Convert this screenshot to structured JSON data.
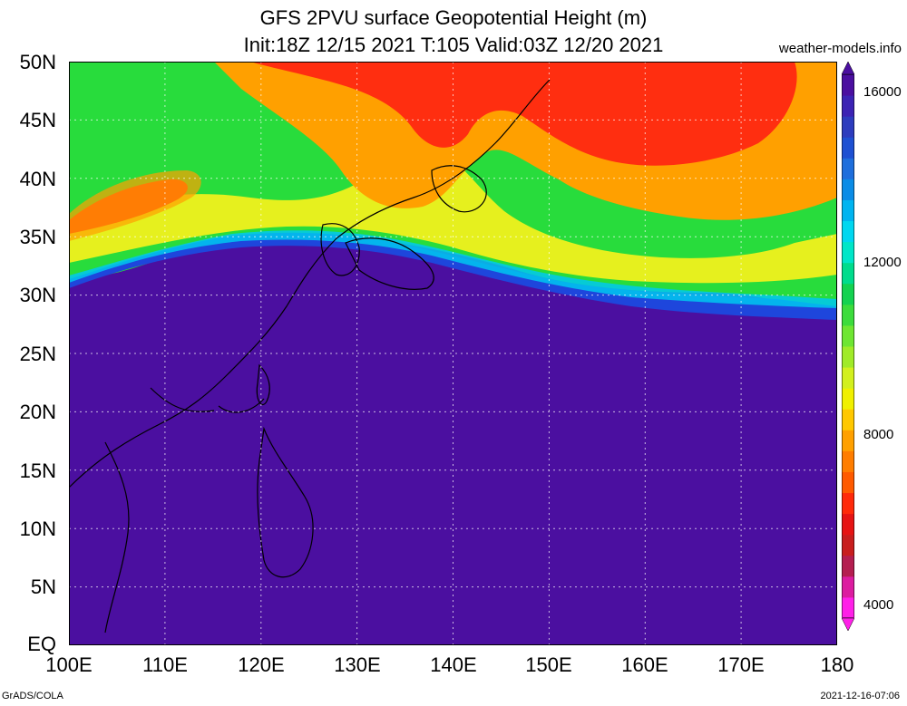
{
  "header": {
    "title_line1": "GFS 2PVU surface Geopotential Height (m)",
    "title_line2": "Init:18Z 12/15 2021 T:105 Valid:03Z 12/20 2021",
    "source": "weather-models.info"
  },
  "footer": {
    "left": "GrADS/COLA",
    "right": "2021-12-16-07:06"
  },
  "map": {
    "lat_labels": [
      "50N",
      "45N",
      "40N",
      "35N",
      "30N",
      "25N",
      "20N",
      "15N",
      "10N",
      "5N",
      "EQ"
    ],
    "lon_labels": [
      "100E",
      "110E",
      "120E",
      "130E",
      "140E",
      "150E",
      "160E",
      "170E",
      "180"
    ],
    "colors": {
      "deep_purple": "#4b0fa0",
      "blue": "#1e46dc",
      "cyan": "#00c8f0",
      "green": "#28dc3c",
      "yellow": "#e6f01e",
      "orange": "#ffa000",
      "red": "#ff2e10"
    }
  },
  "colorbar": {
    "labels": [
      "16000",
      "12000",
      "8000",
      "4000"
    ],
    "colors": [
      "#ff20e8",
      "#dc1ca0",
      "#b41e50",
      "#c81e1e",
      "#e61414",
      "#ff2a0a",
      "#ff5a00",
      "#ff7d00",
      "#ffa000",
      "#ffc800",
      "#f0f000",
      "#d2f01e",
      "#a0eb28",
      "#6ee632",
      "#3cdc3c",
      "#14d250",
      "#00dc8c",
      "#00e6c8",
      "#00d7f0",
      "#00b4f0",
      "#0a8ce6",
      "#1e6edc",
      "#1e50d2",
      "#2d3cbe",
      "#3c23b4",
      "#4b0fa0"
    ]
  }
}
